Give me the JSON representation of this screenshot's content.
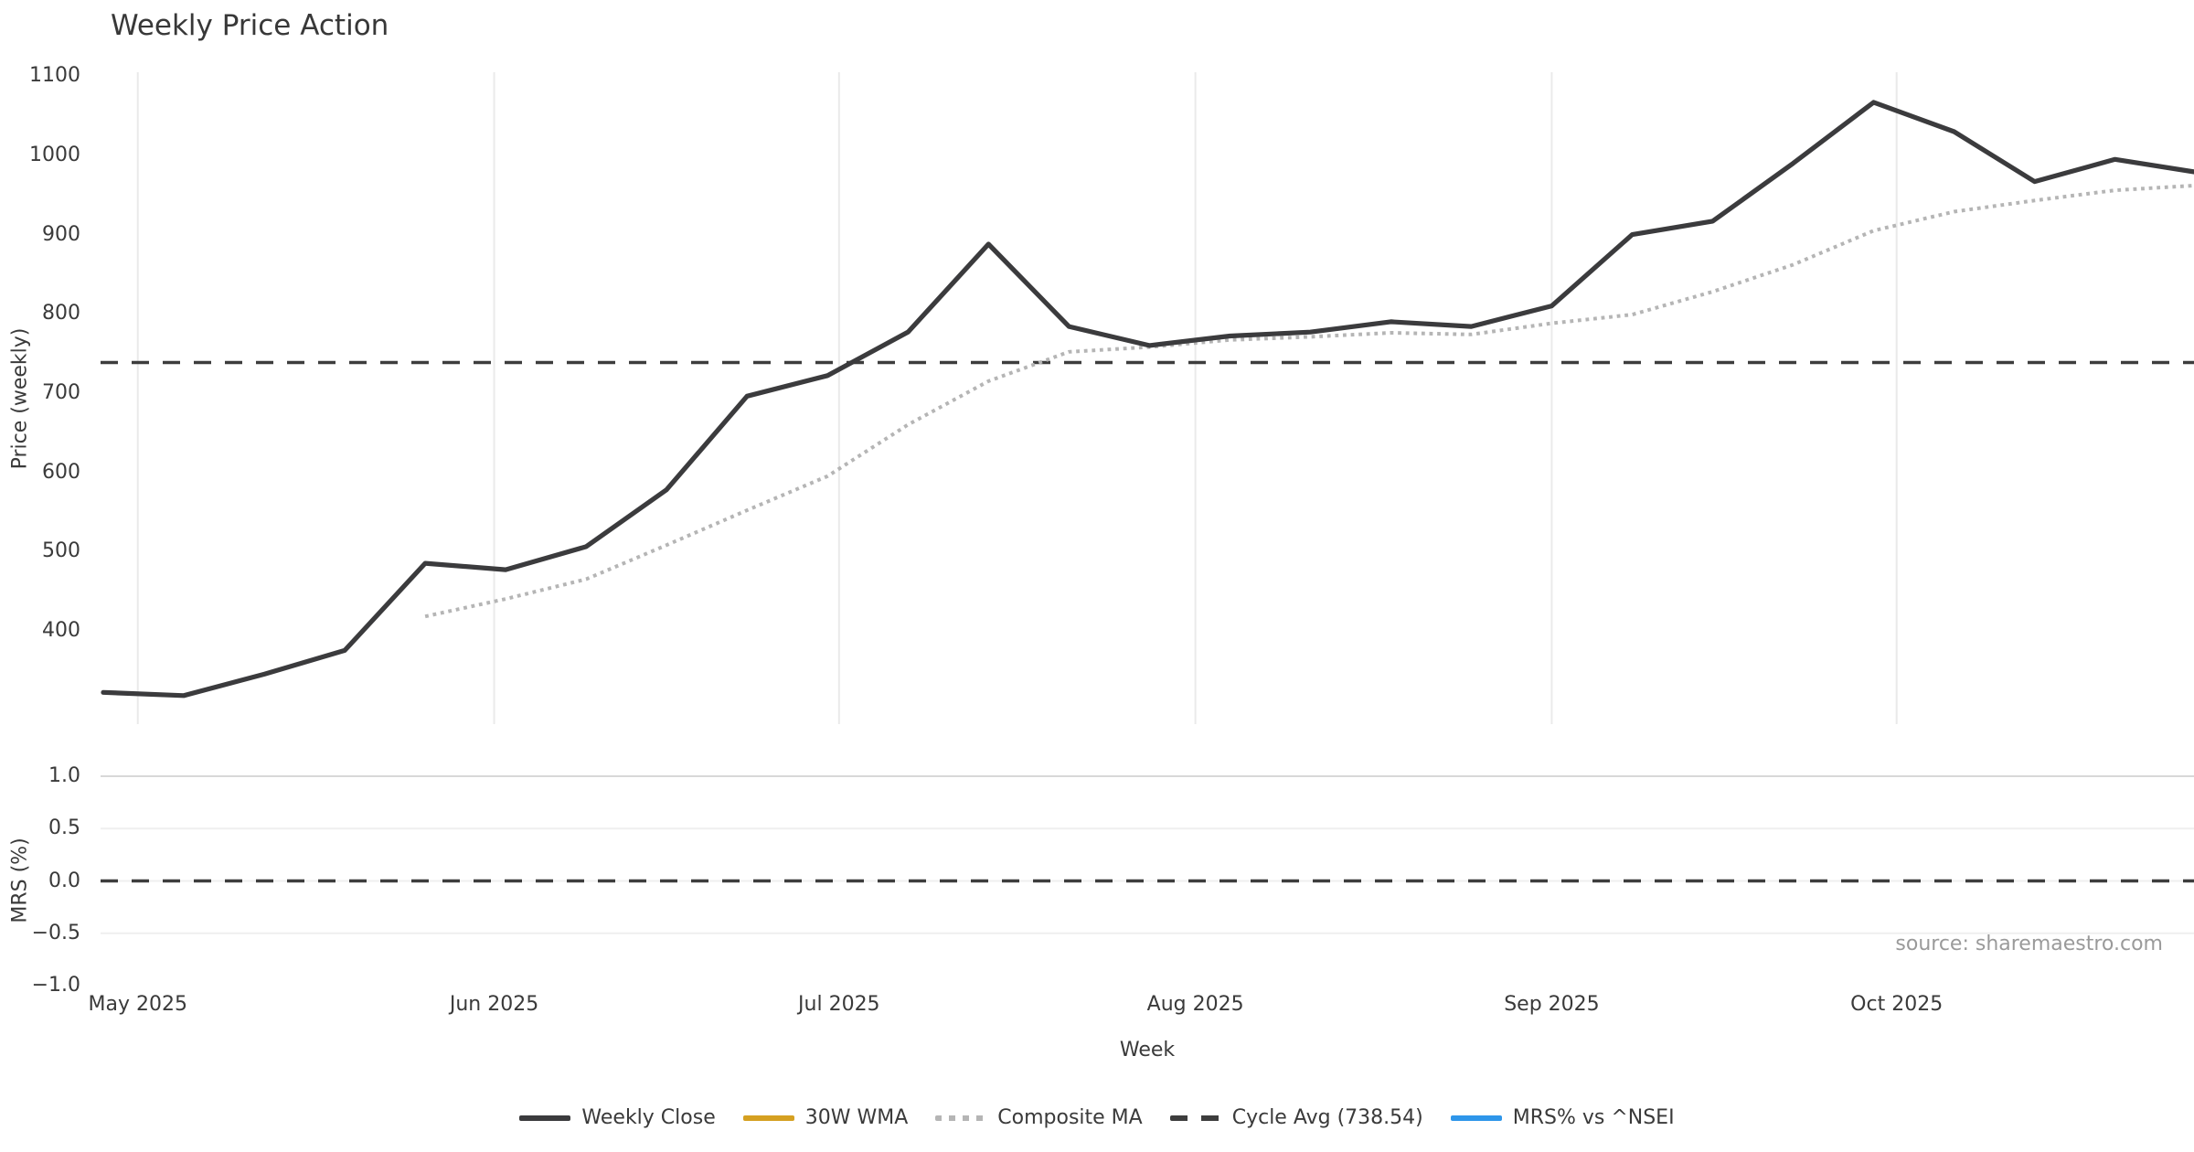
{
  "title": "Weekly Price Action",
  "source_note": "source: sharemaestro.com",
  "colors": {
    "weekly_close": "#3b3b3d",
    "wma_30w": "#d5a021",
    "composite_ma": "#b5b5b5",
    "cycle_avg": "#3d3d3d",
    "mrs_blue": "#2e96ea",
    "gridline": "#eaeaea",
    "gridline_strong": "#d8d8d8",
    "text": "#3a3a3a",
    "source_text": "#9a9a9a"
  },
  "legend": [
    {
      "label": "Weekly Close",
      "color": "#3b3b3d",
      "style": "solid"
    },
    {
      "label": "30W WMA",
      "color": "#d5a021",
      "style": "solid"
    },
    {
      "label": "Composite MA",
      "color": "#b5b5b5",
      "style": "dotted"
    },
    {
      "label": "Cycle Avg (738.54)",
      "color": "#3d3d3d",
      "style": "dashed"
    },
    {
      "label": "MRS% vs ^NSEI",
      "color": "#2e96ea",
      "style": "solid"
    }
  ],
  "chart_data": {
    "type": "line",
    "title": "Weekly Price Action",
    "xlabel": "Week",
    "legend_position": "bottom",
    "x_dates": [
      "2025-04-28",
      "2025-05-05",
      "2025-05-12",
      "2025-05-19",
      "2025-05-26",
      "2025-06-02",
      "2025-06-09",
      "2025-06-16",
      "2025-06-23",
      "2025-06-30",
      "2025-07-07",
      "2025-07-14",
      "2025-07-21",
      "2025-07-28",
      "2025-08-04",
      "2025-08-11",
      "2025-08-18",
      "2025-08-25",
      "2025-09-01",
      "2025-09-08",
      "2025-09-15",
      "2025-09-22",
      "2025-09-29",
      "2025-10-06",
      "2025-10-13",
      "2025-10-20",
      "2025-10-27"
    ],
    "x_month_ticks": [
      {
        "label": "May 2025",
        "day": 3
      },
      {
        "label": "Jun 2025",
        "day": 34
      },
      {
        "label": "Jul 2025",
        "day": 64
      },
      {
        "label": "Aug 2025",
        "day": 95
      },
      {
        "label": "Sep 2025",
        "day": 126
      },
      {
        "label": "Oct 2025",
        "day": 156
      }
    ],
    "panels": [
      {
        "name": "price",
        "ylabel": "Price (weekly)",
        "ylim": [
          282,
          1105
        ],
        "yticks": [
          {
            "label": "1100",
            "value": 1100
          },
          {
            "label": "1000",
            "value": 1000
          },
          {
            "label": "900",
            "value": 900
          },
          {
            "label": "800",
            "value": 800
          },
          {
            "label": "700",
            "value": 700
          },
          {
            "label": "600",
            "value": 600
          },
          {
            "label": "500",
            "value": 500
          },
          {
            "label": "400",
            "value": 400
          }
        ],
        "grid": "vertical-months-only",
        "series": [
          {
            "name": "Weekly Close",
            "style": "solid",
            "color": "#3b3b3d",
            "values": [
              322,
              318,
              345,
              375,
              485,
              477,
              506,
              578,
              696,
              722,
              777,
              888,
              784,
              760,
              772,
              777,
              790,
              784,
              810,
              900,
              917,
              990,
              1067,
              1030,
              967,
              995,
              979
            ]
          },
          {
            "name": "30W WMA",
            "style": "solid",
            "color": "#d5a021",
            "values": null,
            "note": "in legend, no visible data on plot"
          },
          {
            "name": "Composite MA",
            "style": "dotted",
            "color": "#b5b5b5",
            "values": [
              null,
              null,
              null,
              null,
              418,
              440,
              465,
              508,
              552,
              595,
              660,
              715,
              752,
              758,
              767,
              771,
              776,
              774,
              788,
              799,
              828,
              862,
              905,
              929,
              943,
              956,
              962
            ]
          },
          {
            "name": "Cycle Avg (738.54)",
            "style": "dashed",
            "color": "#3d3d3d",
            "constant": 738.54
          }
        ]
      },
      {
        "name": "mrs",
        "ylabel": "MRS (%)",
        "ylim": [
          -1.0,
          1.0
        ],
        "yticks": [
          {
            "label": "1.0",
            "value": 1.0
          },
          {
            "label": "0.5",
            "value": 0.5
          },
          {
            "label": "0.0",
            "value": 0.0
          },
          {
            "label": "−0.5",
            "value": -0.5
          },
          {
            "label": "−1.0",
            "value": -1.0
          }
        ],
        "grid": "horizontal",
        "gridline_values": [
          1.0,
          0.5,
          0.0,
          -0.5
        ],
        "series": [
          {
            "name": "MRS% vs ^NSEI",
            "style": "solid",
            "color": "#2e96ea",
            "values": null,
            "note": "in legend, no visible data on plot"
          },
          {
            "name": "Zero line",
            "style": "dashed",
            "color": "#3d3d3d",
            "constant": 0.0
          }
        ]
      }
    ]
  }
}
